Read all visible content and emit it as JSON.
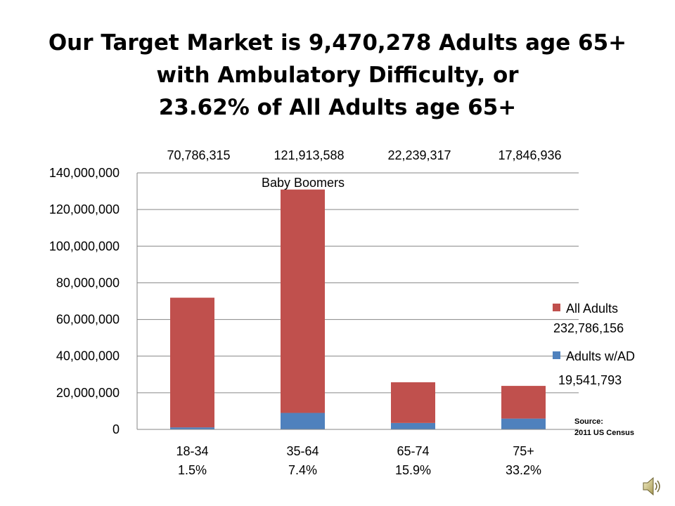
{
  "slide": {
    "title_lines": [
      "Our Target Market is 9,470,278 Adults age 65+",
      "with Ambulatory Difficulty, or",
      "23.62% of All Adults age 65+"
    ]
  },
  "chart_data": {
    "type": "bar",
    "stacked": true,
    "categories": [
      "18-34",
      "35-64",
      "65-74",
      "75+"
    ],
    "category_percent_labels": [
      "1.5%",
      "7.4%",
      "15.9%",
      "33.2%"
    ],
    "top_totals": [
      "70,786,315",
      "121,913,588",
      "22,239,317",
      "17,846,936"
    ],
    "annotation": "Baby Boomers",
    "series": [
      {
        "name": "Adults w/AD",
        "values": [
          1100000,
          9000000,
          3500000,
          5900000
        ],
        "color": "#4F81BD"
      },
      {
        "name": "All Adults",
        "values": [
          70786315,
          121913588,
          22239317,
          17846936
        ],
        "color": "#C0504D"
      }
    ],
    "legend": [
      {
        "label": "All Adults",
        "total": "232,786,156",
        "color": "#C0504D"
      },
      {
        "label": "Adults w/AD",
        "total": "19,541,793",
        "color": "#4F81BD"
      }
    ],
    "y_ticks": [
      "0",
      "20,000,000",
      "40,000,000",
      "60,000,000",
      "80,000,000",
      "100,000,000",
      "120,000,000",
      "140,000,000"
    ],
    "ylim": [
      0,
      140000000
    ],
    "grid": true,
    "source_label": "Source:",
    "source_text": "2011 US Census"
  }
}
